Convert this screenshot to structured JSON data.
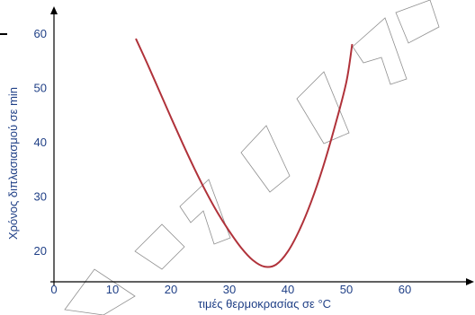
{
  "chart_data": {
    "type": "line",
    "title": "",
    "xlabel": "τιμές θερμοκρασίας σε °C",
    "ylabel": "Χρόνος διπλασιασμού σε min",
    "x_ticks": [
      0,
      10,
      20,
      30,
      40,
      50,
      60
    ],
    "y_ticks": [
      20,
      30,
      40,
      50,
      60
    ],
    "xlim": [
      0,
      72
    ],
    "ylim": [
      14.5,
      64
    ],
    "grid": false,
    "legend": "none",
    "series": [
      {
        "color": "#b0323a",
        "x": [
          14,
          16,
          18,
          20,
          22,
          24,
          26,
          28,
          30,
          32,
          34,
          36,
          38,
          40,
          42,
          44,
          46,
          48,
          50,
          51
        ],
        "y": [
          59,
          54.3,
          49.4,
          44.5,
          39.7,
          35.1,
          30.8,
          26.9,
          23.5,
          20.5,
          18.2,
          17.0,
          17.4,
          19.8,
          23.8,
          29.0,
          35.3,
          42.7,
          51.0,
          58.0
        ]
      }
    ]
  },
  "watermark": {
    "text": "ΣΗΣ ΧΕΙΡΑΦΕ"
  },
  "colors": {
    "axis": "#000000",
    "text": "#1f3f86",
    "curve": "#b0323a",
    "watermark": "#6a6a6a"
  }
}
